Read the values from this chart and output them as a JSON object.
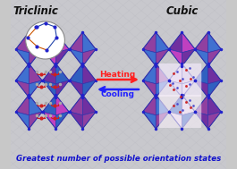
{
  "title": "",
  "bg_color": "#c8c8c8",
  "label_triclinic": "Triclinic",
  "label_cubic": "Cubic",
  "label_heating": "Heating",
  "label_cooling": "Cooling",
  "label_bottom": "Greatest number of possible orientation states",
  "arrow_heating_color": "#ff2020",
  "arrow_cooling_color": "#2020ff",
  "label_color_triclinic": "#000000",
  "label_color_cubic": "#000000",
  "label_color_bottom": "#1010cc",
  "label_color_heating": "#ff2020",
  "label_color_cooling": "#2020ff",
  "fig_width": 2.65,
  "fig_height": 1.89,
  "dpi": 100
}
